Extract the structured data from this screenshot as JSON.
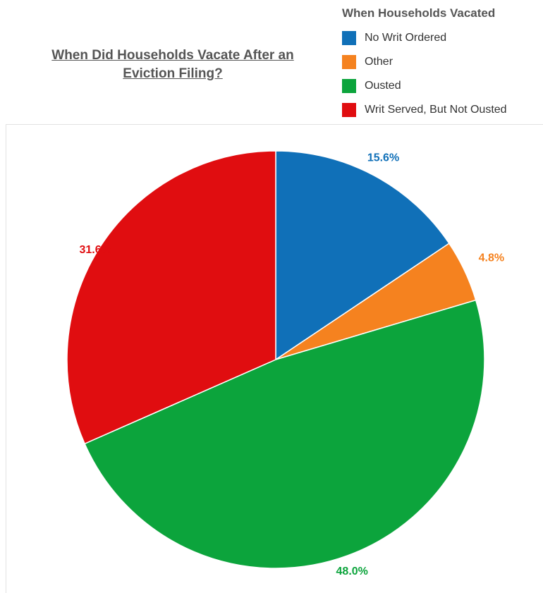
{
  "chart_data": {
    "type": "pie",
    "title": [
      "When Did Households Vacate After an",
      "Eviction Filing?"
    ],
    "legend_title": "When Households Vacated",
    "legend_position": "top-right",
    "slices": [
      {
        "name": "No Writ Ordered",
        "value": 15.6,
        "label": "15.6%",
        "color": "#1070b8"
      },
      {
        "name": "Other",
        "value": 4.8,
        "label": "4.8%",
        "color": "#f5821f"
      },
      {
        "name": "Ousted",
        "value": 48.0,
        "label": "48.0%",
        "color": "#0ca43c"
      },
      {
        "name": "Writ Served, But Not Ousted",
        "value": 31.6,
        "label": "31.6%",
        "color": "#e00d10"
      }
    ]
  }
}
